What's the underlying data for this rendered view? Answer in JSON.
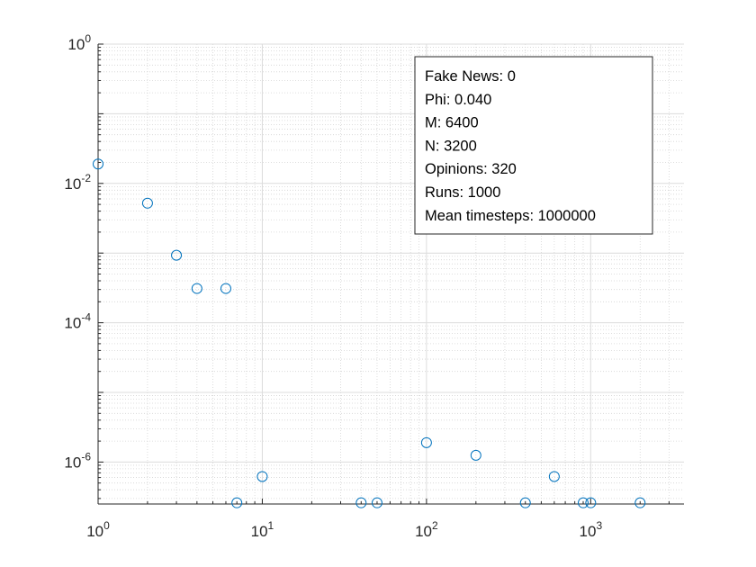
{
  "chart_data": {
    "type": "scatter",
    "x_scale": "log",
    "y_scale": "log",
    "xlim": [
      1,
      3700
    ],
    "ylim": [
      2.5e-07,
      1
    ],
    "grid": true,
    "minor_grid": true,
    "marker": "circle",
    "color": "#0072BD",
    "x_ticks": [
      {
        "base": "10",
        "exp": "0",
        "value": 1
      },
      {
        "base": "10",
        "exp": "1",
        "value": 10
      },
      {
        "base": "10",
        "exp": "2",
        "value": 100
      },
      {
        "base": "10",
        "exp": "3",
        "value": 1000
      }
    ],
    "y_ticks": [
      {
        "base": "10",
        "exp": "0",
        "value": 1
      },
      {
        "base": "10",
        "exp": "-2",
        "value": 0.01
      },
      {
        "base": "10",
        "exp": "-4",
        "value": 0.0001
      },
      {
        "base": "10",
        "exp": "-6",
        "value": 1e-06
      }
    ],
    "series": [
      {
        "x": [
          1,
          2,
          3,
          4,
          6,
          7,
          10,
          40,
          50,
          100,
          200,
          400,
          600,
          900,
          1000,
          2000
        ],
        "y": [
          0.019,
          0.0052,
          0.00093,
          0.00031,
          0.00031,
          2.6e-07,
          6.2e-07,
          2.6e-07,
          2.6e-07,
          1.9e-06,
          1.25e-06,
          2.6e-07,
          6.2e-07,
          2.6e-07,
          2.6e-07,
          2.6e-07
        ]
      }
    ],
    "legend_position": "top-right",
    "annotation": [
      "Fake News: 0",
      "Phi: 0.040",
      "M: 6400",
      "N: 3200",
      "Opinions: 320",
      "Runs: 1000",
      "Mean timesteps: 1000000"
    ]
  }
}
